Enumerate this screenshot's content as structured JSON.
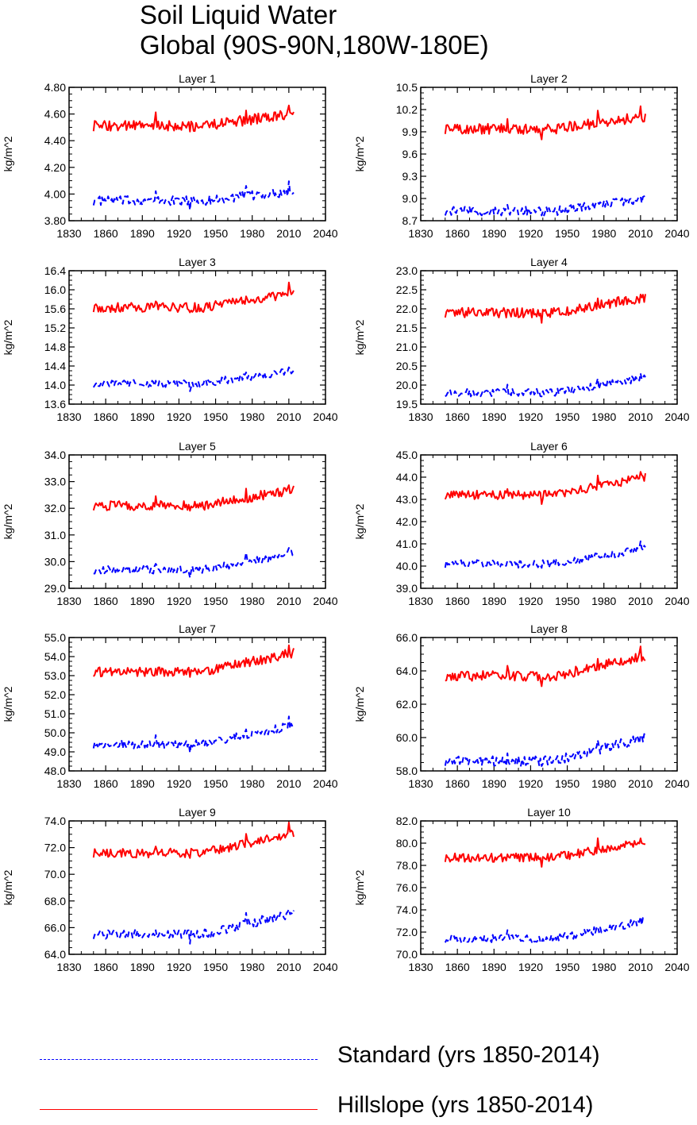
{
  "title": {
    "line1": "Soil Liquid Water",
    "line2": "Global (90S-90N,180W-180E)"
  },
  "legend": [
    {
      "label": "Standard (yrs 1850-2014)",
      "color": "#0000ff",
      "style": "dashed"
    },
    {
      "label": "Hillslope (yrs 1850-2014)",
      "color": "#ff0000",
      "style": "solid"
    }
  ],
  "colors": {
    "standard": "#0000ff",
    "hillslope": "#ff0000",
    "axis": "#000000"
  },
  "chart_data": [
    {
      "type": "line",
      "title": "Layer 1",
      "ylabel": "kg/m^2",
      "xlim": [
        1830,
        2040
      ],
      "ylim": [
        3.8,
        4.8
      ],
      "xticks": [
        "1830",
        "1860",
        "1890",
        "1920",
        "1950",
        "1980",
        "2010",
        "2040"
      ],
      "yticks": [
        "3.80",
        "4.00",
        "4.20",
        "4.40",
        "4.60",
        "4.80"
      ],
      "series": [
        {
          "value": 3.95,
          "trend": 0.07,
          "var": 0.035
        },
        {
          "value": 4.51,
          "trend": 0.09,
          "var": 0.04
        }
      ]
    },
    {
      "type": "line",
      "title": "Layer 2",
      "ylabel": "kg/m^2",
      "xlim": [
        1830,
        2040
      ],
      "ylim": [
        8.7,
        10.5
      ],
      "xticks": [
        "1830",
        "1860",
        "1890",
        "1920",
        "1950",
        "1980",
        "2010",
        "2040"
      ],
      "yticks": [
        "8.7",
        "9.0",
        "9.3",
        "9.6",
        "9.9",
        "10.2",
        "10.5"
      ],
      "series": [
        {
          "value": 8.83,
          "trend": 0.17,
          "var": 0.06
        },
        {
          "value": 9.94,
          "trend": 0.17,
          "var": 0.07
        }
      ]
    },
    {
      "type": "line",
      "title": "Layer 3",
      "ylabel": "kg/m^2",
      "xlim": [
        1830,
        2040
      ],
      "ylim": [
        13.6,
        16.4
      ],
      "xticks": [
        "1830",
        "1860",
        "1890",
        "1920",
        "1950",
        "1980",
        "2010",
        "2040"
      ],
      "yticks": [
        "13.6",
        "14.0",
        "14.4",
        "14.8",
        "15.2",
        "15.6",
        "16.0",
        "16.4"
      ],
      "series": [
        {
          "value": 14.03,
          "trend": 0.28,
          "var": 0.08
        },
        {
          "value": 15.63,
          "trend": 0.3,
          "var": 0.1
        }
      ]
    },
    {
      "type": "line",
      "title": "Layer 4",
      "ylabel": "kg/m^2",
      "xlim": [
        1830,
        2040
      ],
      "ylim": [
        19.5,
        23.0
      ],
      "xticks": [
        "1830",
        "1860",
        "1890",
        "1920",
        "1950",
        "1980",
        "2010",
        "2040"
      ],
      "yticks": [
        "19.5",
        "20.0",
        "20.5",
        "21.0",
        "21.5",
        "22.0",
        "22.5",
        "23.0"
      ],
      "series": [
        {
          "value": 19.8,
          "trend": 0.4,
          "var": 0.1
        },
        {
          "value": 21.9,
          "trend": 0.4,
          "var": 0.13
        }
      ]
    },
    {
      "type": "line",
      "title": "Layer 5",
      "ylabel": "kg/m^2",
      "xlim": [
        1830,
        2040
      ],
      "ylim": [
        29.0,
        34.0
      ],
      "xticks": [
        "1830",
        "1860",
        "1890",
        "1920",
        "1950",
        "1980",
        "2010",
        "2040"
      ],
      "yticks": [
        "29.0",
        "30.0",
        "31.0",
        "32.0",
        "33.0",
        "34.0"
      ],
      "series": [
        {
          "value": 29.7,
          "trend": 0.6,
          "var": 0.15
        },
        {
          "value": 32.1,
          "trend": 0.6,
          "var": 0.18
        }
      ]
    },
    {
      "type": "line",
      "title": "Layer 6",
      "ylabel": "kg/m^2",
      "xlim": [
        1830,
        2040
      ],
      "ylim": [
        39.0,
        45.0
      ],
      "xticks": [
        "1830",
        "1860",
        "1890",
        "1920",
        "1950",
        "1980",
        "2010",
        "2040"
      ],
      "yticks": [
        "39.0",
        "40.0",
        "41.0",
        "42.0",
        "43.0",
        "44.0",
        "45.0"
      ],
      "series": [
        {
          "value": 40.1,
          "trend": 0.7,
          "var": 0.18
        },
        {
          "value": 43.2,
          "trend": 0.8,
          "var": 0.2
        }
      ]
    },
    {
      "type": "line",
      "title": "Layer 7",
      "ylabel": "kg/m^2",
      "xlim": [
        1830,
        2040
      ],
      "ylim": [
        48.0,
        55.0
      ],
      "xticks": [
        "1830",
        "1860",
        "1890",
        "1920",
        "1950",
        "1980",
        "2010",
        "2040"
      ],
      "yticks": [
        "48.0",
        "49.0",
        "50.0",
        "51.0",
        "52.0",
        "53.0",
        "54.0",
        "55.0"
      ],
      "series": [
        {
          "value": 49.4,
          "trend": 1.0,
          "var": 0.22
        },
        {
          "value": 53.2,
          "trend": 1.0,
          "var": 0.25
        }
      ]
    },
    {
      "type": "line",
      "title": "Layer 8",
      "ylabel": "kg/m^2",
      "xlim": [
        1830,
        2040
      ],
      "ylim": [
        58.0,
        66.0
      ],
      "xticks": [
        "1830",
        "1860",
        "1890",
        "1920",
        "1950",
        "1980",
        "2010",
        "2040"
      ],
      "yticks": [
        "58.0",
        "60.0",
        "62.0",
        "64.0",
        "66.0"
      ],
      "series": [
        {
          "value": 58.6,
          "trend": 1.4,
          "var": 0.3
        },
        {
          "value": 63.7,
          "trend": 1.2,
          "var": 0.3
        }
      ]
    },
    {
      "type": "line",
      "title": "Layer 9",
      "ylabel": "kg/m^2",
      "xlim": [
        1830,
        2040
      ],
      "ylim": [
        64.0,
        74.0
      ],
      "xticks": [
        "1830",
        "1860",
        "1890",
        "1920",
        "1950",
        "1980",
        "2010",
        "2040"
      ],
      "yticks": [
        "64.0",
        "66.0",
        "68.0",
        "70.0",
        "72.0",
        "74.0"
      ],
      "series": [
        {
          "value": 65.5,
          "trend": 1.6,
          "var": 0.35
        },
        {
          "value": 71.6,
          "trend": 1.5,
          "var": 0.35
        }
      ]
    },
    {
      "type": "line",
      "title": "Layer 10",
      "ylabel": "kg/m^2",
      "xlim": [
        1830,
        2040
      ],
      "ylim": [
        70.0,
        82.0
      ],
      "xticks": [
        "1830",
        "1860",
        "1890",
        "1920",
        "1950",
        "1980",
        "2010",
        "2040"
      ],
      "yticks": [
        "70.0",
        "72.0",
        "74.0",
        "76.0",
        "78.0",
        "80.0",
        "82.0"
      ],
      "series": [
        {
          "value": 71.4,
          "trend": 1.6,
          "var": 0.35
        },
        {
          "value": 78.7,
          "trend": 1.5,
          "var": 0.4
        }
      ]
    }
  ]
}
